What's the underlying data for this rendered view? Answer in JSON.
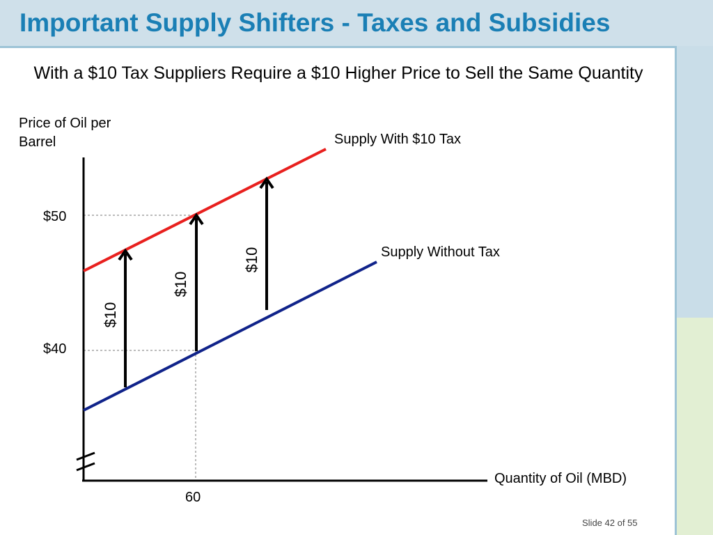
{
  "slide": {
    "title": "Important Supply Shifters - Taxes and Subsidies",
    "subtitle": "With a $10 Tax Suppliers Require a $10 Higher Price to Sell the Same Quantity",
    "footer": "Slide 42 of 55"
  },
  "diagram": {
    "y_axis_label": "Price of Oil per Barrel",
    "x_axis_label": "Quantity of Oil (MBD)",
    "price_ticks": [
      "$50",
      "$40"
    ],
    "quantity_tick": "60",
    "curves": {
      "with_tax": {
        "label": "Supply With $10 Tax",
        "color": "#e8201e"
      },
      "without_tax": {
        "label": "Supply Without Tax",
        "color": "#10238a"
      }
    },
    "shift_arrows": [
      {
        "label": "$10"
      },
      {
        "label": "$10"
      },
      {
        "label": "$10"
      }
    ],
    "title_color": "#1a7fb5"
  }
}
